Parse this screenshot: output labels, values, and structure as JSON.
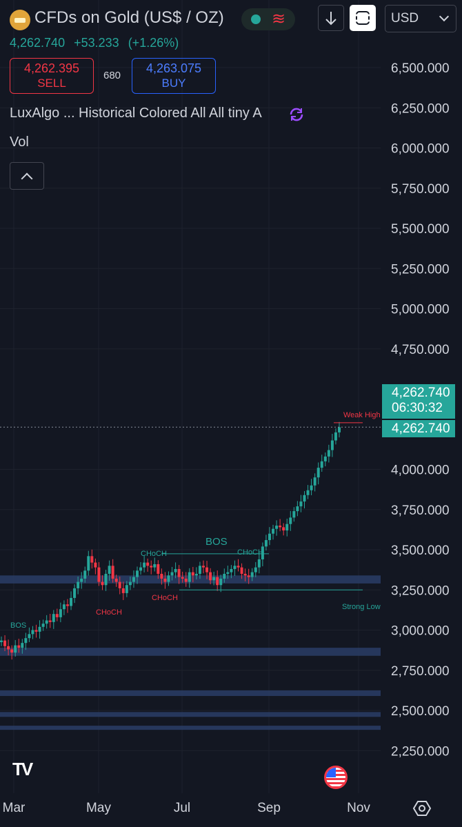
{
  "header": {
    "symbol_title": "CFDs on Gold (US$ / OZ)",
    "last_price": "4,262.740",
    "change": "+53.233",
    "change_pct": "(+1.26%)",
    "currency": "USD"
  },
  "trade": {
    "sell_price": "4,262.395",
    "sell_label": "SELL",
    "spread": "680",
    "buy_price": "4,263.075",
    "buy_label": "BUY"
  },
  "indicators": {
    "legend": "LuxAlgo ... Historical Colored All All tiny A",
    "volume": "Vol"
  },
  "price_tags": {
    "current": "4,262.740",
    "countdown": "06:30:32",
    "line_label": "4,262.740"
  },
  "colors": {
    "up": "#26a69a",
    "down": "#f23645",
    "zone": "#2a3d66",
    "background": "#131722"
  },
  "chart_data": {
    "type": "candlestick",
    "y_ticks": [
      "6,500.000",
      "6,250.000",
      "6,000.000",
      "5,750.000",
      "5,500.000",
      "5,250.000",
      "5,000.000",
      "4,750.000",
      "4,000.000",
      "3,750.000",
      "3,500.000",
      "3,250.000",
      "3,000.000",
      "2,750.000",
      "2,500.000",
      "2,250.000"
    ],
    "x_ticks": [
      "Mar",
      "May",
      "Jul",
      "Sep",
      "Nov"
    ],
    "ylim": [
      2200,
      6600
    ],
    "current_price": 4262.74,
    "annotations": [
      {
        "text": "BOS",
        "price": 3030,
        "color": "up"
      },
      {
        "text": "CHoCH",
        "price": 3470,
        "color": "up"
      },
      {
        "text": "BOS",
        "price": 3540,
        "color": "up"
      },
      {
        "text": "CHoCH",
        "price": 3475,
        "color": "up"
      },
      {
        "text": "CHoCH",
        "price": 3110,
        "color": "down"
      },
      {
        "text": "CHoCH",
        "price": 3200,
        "color": "down"
      },
      {
        "text": "Weak High",
        "price": 4300,
        "color": "down"
      },
      {
        "text": "Strong Low",
        "price": 3150,
        "color": "up"
      }
    ],
    "zones": [
      {
        "low": 3290,
        "high": 3340
      },
      {
        "low": 2840,
        "high": 2890
      },
      {
        "low": 2590,
        "high": 2625
      },
      {
        "low": 2460,
        "high": 2490
      },
      {
        "low": 2380,
        "high": 2405
      }
    ],
    "series": [
      {
        "values": [
          2935,
          2900,
          2880,
          2860,
          2905,
          2890,
          2920,
          2950,
          2975,
          3000,
          2990,
          3020,
          3040,
          3060,
          3050,
          3100,
          3080,
          3130,
          3160,
          3150,
          3200,
          3260,
          3300,
          3320,
          3370,
          3460,
          3420,
          3390,
          3300,
          3280,
          3350,
          3400,
          3320,
          3300,
          3260,
          3230,
          3280,
          3300,
          3330,
          3370,
          3390,
          3420,
          3400,
          3390,
          3410,
          3350,
          3320,
          3300,
          3340,
          3360,
          3380,
          3330,
          3320,
          3300,
          3360,
          3340,
          3350,
          3400,
          3390,
          3360,
          3310,
          3330,
          3280,
          3320,
          3350,
          3360,
          3380,
          3400,
          3390,
          3350,
          3340,
          3330,
          3360,
          3390,
          3440,
          3520,
          3560,
          3600,
          3630,
          3650,
          3640,
          3620,
          3660,
          3700,
          3740,
          3770,
          3800,
          3840,
          3870,
          3900,
          3950,
          4010,
          4050,
          4080,
          4120,
          4180,
          4230,
          4262
        ]
      }
    ]
  }
}
